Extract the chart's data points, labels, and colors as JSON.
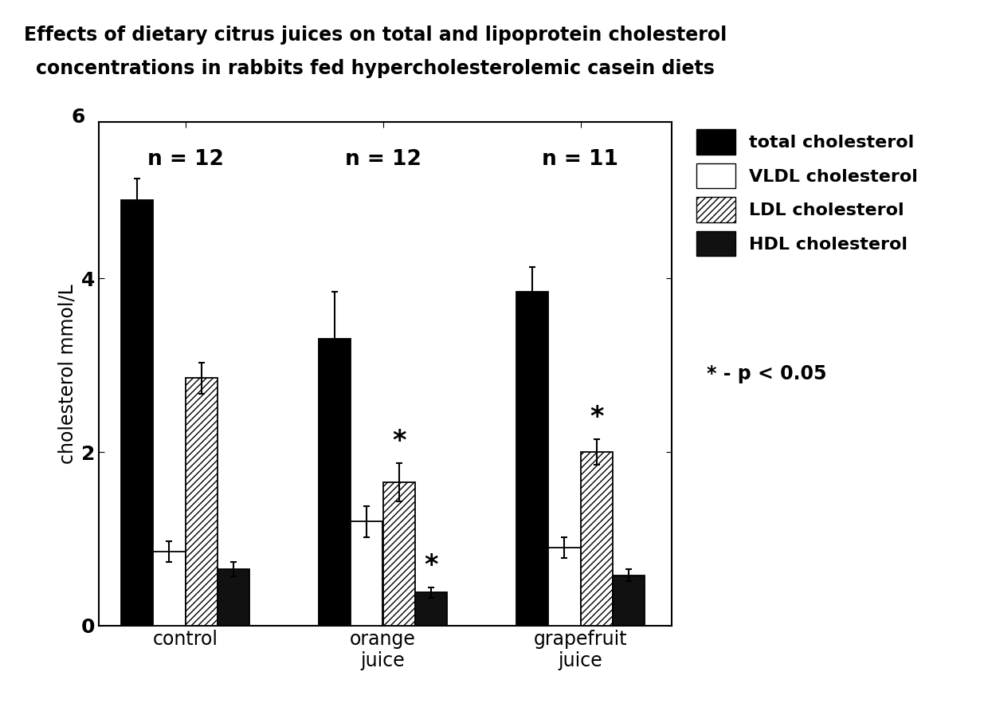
{
  "title_line1": "Effects of dietary citrus juices on total and lipoprotein cholesterol",
  "title_line2": "concentrations in rabbits fed hypercholesterolemic casein diets",
  "ylabel": "cholesterol mmol/L",
  "ylim": [
    0,
    5.8
  ],
  "yticks": [
    0,
    2,
    4
  ],
  "groups": [
    "control",
    "orange\njuice",
    "grapefruit\njuice"
  ],
  "n_labels": [
    "n = 12",
    "n = 12",
    "n = 11"
  ],
  "bar_labels": [
    "total cholesterol",
    "VLDL cholesterol",
    "LDL cholesterol",
    "HDL cholesterol"
  ],
  "values": [
    [
      4.9,
      0.85,
      2.85,
      0.65
    ],
    [
      3.3,
      1.2,
      1.65,
      0.38
    ],
    [
      3.85,
      0.9,
      2.0,
      0.58
    ]
  ],
  "errors": [
    [
      0.25,
      0.12,
      0.18,
      0.08
    ],
    [
      0.55,
      0.18,
      0.22,
      0.06
    ],
    [
      0.28,
      0.12,
      0.15,
      0.07
    ]
  ],
  "sig_data": [
    [
      1,
      2
    ],
    [
      1,
      3
    ],
    [
      2,
      2
    ]
  ],
  "background_color": "#ffffff",
  "title_fontsize": 17,
  "axis_fontsize": 17,
  "tick_fontsize": 18,
  "legend_fontsize": 16,
  "n_label_fontsize": 19,
  "star_fontsize": 24,
  "pval_fontsize": 17
}
